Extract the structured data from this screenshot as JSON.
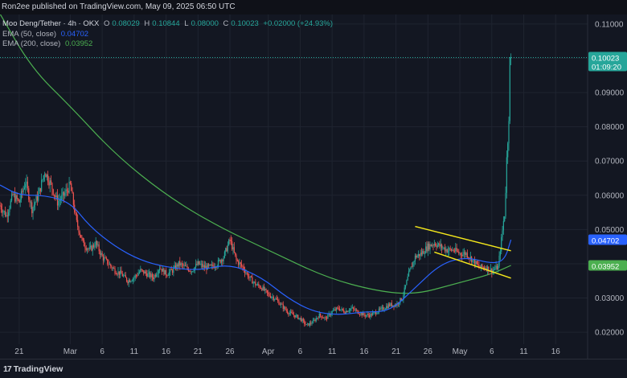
{
  "header": {
    "published": "Ron2ee published on TradingView.com, May 09, 2025 06:50 UTC"
  },
  "legend": {
    "symbol": "Moo Deng/Tether · 4h · OKX",
    "o_label": "O",
    "o_value": "0.08029",
    "h_label": "H",
    "h_value": "0.10844",
    "l_label": "L",
    "l_value": "0.08000",
    "c_label": "C",
    "c_value": "0.10023",
    "change": "+0.02000 (+24.93%)",
    "ema50_label": "EMA (50, close)",
    "ema50_value": "0.04702",
    "ema200_label": "EMA (200, close)",
    "ema200_value": "0.03952"
  },
  "price_tag": {
    "price": "0.10023",
    "countdown": "01:09:20"
  },
  "ema50_tag": "0.04702",
  "ema200_tag": "0.03952",
  "footer": {
    "logo_text": "TradingView",
    "logo_mark": "17"
  },
  "colors": {
    "background": "#131722",
    "up": "#26a69a",
    "down": "#ef5350",
    "ema50": "#2962ff",
    "ema200": "#4caf50",
    "channel": "#f5e81b",
    "grid": "#1f2430"
  },
  "chart_data": {
    "type": "candlestick",
    "pair": "Moo Deng/Tether",
    "timeframe": "4h",
    "exchange": "OKX",
    "y_ticks": [
      "0.02000",
      "0.03000",
      "0.04000",
      "0.05000",
      "0.06000",
      "0.07000",
      "0.08000",
      "0.09000",
      "0.10000",
      "0.11000"
    ],
    "ylim": [
      0.0165,
      0.1128
    ],
    "x_ticks": [
      {
        "label": "21",
        "date": "2025-02-21"
      },
      {
        "label": "Mar",
        "date": "2025-03-01"
      },
      {
        "label": "6",
        "date": "2025-03-06"
      },
      {
        "label": "11",
        "date": "2025-03-11"
      },
      {
        "label": "16",
        "date": "2025-03-16"
      },
      {
        "label": "21",
        "date": "2025-03-21"
      },
      {
        "label": "26",
        "date": "2025-03-26"
      },
      {
        "label": "Apr",
        "date": "2025-04-01"
      },
      {
        "label": "6",
        "date": "2025-04-06"
      },
      {
        "label": "11",
        "date": "2025-04-11"
      },
      {
        "label": "16",
        "date": "2025-04-16"
      },
      {
        "label": "21",
        "date": "2025-04-21"
      },
      {
        "label": "26",
        "date": "2025-04-26"
      },
      {
        "label": "May",
        "date": "2025-05-01"
      },
      {
        "label": "6",
        "date": "2025-05-06"
      },
      {
        "label": "11",
        "date": "2025-05-11"
      },
      {
        "label": "16",
        "date": "2025-05-16"
      }
    ],
    "xlim": [
      "2025-02-18",
      "2025-05-21"
    ],
    "price_path": [
      [
        "2025-02-18",
        0.057
      ],
      [
        "2025-02-19",
        0.054
      ],
      [
        "2025-02-20",
        0.06
      ],
      [
        "2025-02-21",
        0.058
      ],
      [
        "2025-02-22",
        0.064
      ],
      [
        "2025-02-23",
        0.056
      ],
      [
        "2025-02-24",
        0.06
      ],
      [
        "2025-02-25",
        0.067
      ],
      [
        "2025-02-26",
        0.063
      ],
      [
        "2025-02-27",
        0.058
      ],
      [
        "2025-02-28",
        0.06
      ],
      [
        "2025-03-01",
        0.063
      ],
      [
        "2025-03-02",
        0.052
      ],
      [
        "2025-03-03",
        0.046
      ],
      [
        "2025-03-04",
        0.044
      ],
      [
        "2025-03-05",
        0.046
      ],
      [
        "2025-03-06",
        0.042
      ],
      [
        "2025-03-07",
        0.04
      ],
      [
        "2025-03-08",
        0.038
      ],
      [
        "2025-03-09",
        0.037
      ],
      [
        "2025-03-10",
        0.035
      ],
      [
        "2025-03-11",
        0.036
      ],
      [
        "2025-03-12",
        0.038
      ],
      [
        "2025-03-13",
        0.037
      ],
      [
        "2025-03-14",
        0.036
      ],
      [
        "2025-03-15",
        0.039
      ],
      [
        "2025-03-16",
        0.037
      ],
      [
        "2025-03-17",
        0.038
      ],
      [
        "2025-03-18",
        0.04
      ],
      [
        "2025-03-19",
        0.039
      ],
      [
        "2025-03-20",
        0.038
      ],
      [
        "2025-03-21",
        0.04
      ],
      [
        "2025-03-22",
        0.039
      ],
      [
        "2025-03-23",
        0.039
      ],
      [
        "2025-03-24",
        0.04
      ],
      [
        "2025-03-25",
        0.042
      ],
      [
        "2025-03-26",
        0.047
      ],
      [
        "2025-03-27",
        0.041
      ],
      [
        "2025-03-28",
        0.039
      ],
      [
        "2025-03-29",
        0.036
      ],
      [
        "2025-03-30",
        0.034
      ],
      [
        "2025-03-31",
        0.033
      ],
      [
        "2025-04-01",
        0.031
      ],
      [
        "2025-04-02",
        0.03
      ],
      [
        "2025-04-03",
        0.028
      ],
      [
        "2025-04-04",
        0.026
      ],
      [
        "2025-04-05",
        0.025
      ],
      [
        "2025-04-06",
        0.024
      ],
      [
        "2025-04-07",
        0.022
      ],
      [
        "2025-04-08",
        0.023
      ],
      [
        "2025-04-09",
        0.025
      ],
      [
        "2025-04-10",
        0.024
      ],
      [
        "2025-04-11",
        0.026
      ],
      [
        "2025-04-12",
        0.027
      ],
      [
        "2025-04-13",
        0.026
      ],
      [
        "2025-04-14",
        0.027
      ],
      [
        "2025-04-15",
        0.026
      ],
      [
        "2025-04-16",
        0.025
      ],
      [
        "2025-04-17",
        0.025
      ],
      [
        "2025-04-18",
        0.026
      ],
      [
        "2025-04-19",
        0.027
      ],
      [
        "2025-04-20",
        0.028
      ],
      [
        "2025-04-21",
        0.028
      ],
      [
        "2025-04-22",
        0.03
      ],
      [
        "2025-04-23",
        0.037
      ],
      [
        "2025-04-24",
        0.042
      ],
      [
        "2025-04-25",
        0.043
      ],
      [
        "2025-04-26",
        0.045
      ],
      [
        "2025-04-27",
        0.046
      ],
      [
        "2025-04-28",
        0.045
      ],
      [
        "2025-04-29",
        0.044
      ],
      [
        "2025-04-30",
        0.044
      ],
      [
        "2025-05-01",
        0.043
      ],
      [
        "2025-05-02",
        0.043
      ],
      [
        "2025-05-03",
        0.041
      ],
      [
        "2025-05-04",
        0.039
      ],
      [
        "2025-05-05",
        0.039
      ],
      [
        "2025-05-06",
        0.038
      ],
      [
        "2025-05-07",
        0.039
      ],
      [
        "2025-05-08",
        0.055
      ],
      [
        "2025-05-09",
        0.10023
      ]
    ],
    "series": [
      {
        "name": "EMA (50, close)",
        "color": "#2962ff",
        "values": [
          [
            "2025-02-18",
            0.063
          ],
          [
            "2025-02-21",
            0.06
          ],
          [
            "2025-02-25",
            0.06
          ],
          [
            "2025-03-01",
            0.058
          ],
          [
            "2025-03-04",
            0.051
          ],
          [
            "2025-03-08",
            0.045
          ],
          [
            "2025-03-12",
            0.041
          ],
          [
            "2025-03-16",
            0.039
          ],
          [
            "2025-03-21",
            0.038
          ],
          [
            "2025-03-26",
            0.04
          ],
          [
            "2025-03-31",
            0.036
          ],
          [
            "2025-04-04",
            0.03
          ],
          [
            "2025-04-08",
            0.026
          ],
          [
            "2025-04-12",
            0.025
          ],
          [
            "2025-04-16",
            0.026
          ],
          [
            "2025-04-20",
            0.026
          ],
          [
            "2025-04-24",
            0.033
          ],
          [
            "2025-04-28",
            0.04
          ],
          [
            "2025-05-02",
            0.042
          ],
          [
            "2025-05-06",
            0.04
          ],
          [
            "2025-05-08",
            0.041
          ],
          [
            "2025-05-09",
            0.04702
          ]
        ]
      },
      {
        "name": "EMA (200, close)",
        "color": "#4caf50",
        "values": [
          [
            "2025-02-18",
            0.113
          ],
          [
            "2025-02-23",
            0.097
          ],
          [
            "2025-03-01",
            0.086
          ],
          [
            "2025-03-08",
            0.072
          ],
          [
            "2025-03-16",
            0.06
          ],
          [
            "2025-03-24",
            0.051
          ],
          [
            "2025-04-01",
            0.044
          ],
          [
            "2025-04-10",
            0.036
          ],
          [
            "2025-04-18",
            0.032
          ],
          [
            "2025-04-24",
            0.031
          ],
          [
            "2025-04-30",
            0.034
          ],
          [
            "2025-05-06",
            0.037
          ],
          [
            "2025-05-09",
            0.03952
          ]
        ]
      }
    ],
    "annotations": [
      {
        "type": "channel_line",
        "color": "#f5e81b",
        "from": [
          "2025-04-24",
          0.0509
        ],
        "to": [
          "2025-05-09",
          0.0438
        ]
      },
      {
        "type": "channel_line",
        "color": "#f5e81b",
        "from": [
          "2025-04-27",
          0.0434
        ],
        "to": [
          "2025-05-09",
          0.0358
        ]
      }
    ],
    "current_price": 0.10023
  }
}
